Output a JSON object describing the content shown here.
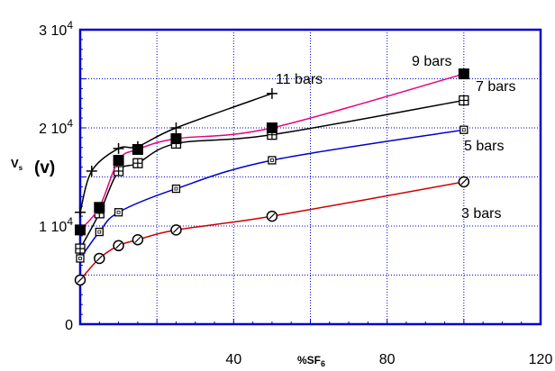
{
  "chart_data": {
    "type": "line",
    "title": "",
    "xlabel": "%SF",
    "xlabel_subscript": "6",
    "ylabel": "V",
    "ylabel_subscript": "s",
    "ylabel_unit": "(v)",
    "xlim": [
      0,
      120
    ],
    "ylim": [
      0,
      30000
    ],
    "grid": true,
    "legend": "none",
    "x_ticks": [
      {
        "value": 40,
        "label": "40"
      },
      {
        "value": 80,
        "label": "80"
      },
      {
        "value": 120,
        "label": "120"
      }
    ],
    "y_ticks": [
      {
        "value": 0,
        "label": "0",
        "exp": ""
      },
      {
        "value": 10000,
        "label": "1 10",
        "exp": "4"
      },
      {
        "value": 20000,
        "label": "2 10",
        "exp": "4"
      },
      {
        "value": 30000,
        "label": "3 10",
        "exp": "4"
      }
    ],
    "series": [
      {
        "name": "3 bars",
        "color": "#cc0000",
        "marker": "circle-x",
        "x": [
          0,
          5,
          10,
          15,
          25,
          50,
          100
        ],
        "y": [
          4500,
          6700,
          8000,
          8600,
          9600,
          11000,
          14500
        ]
      },
      {
        "name": "5 bars",
        "color": "#0000cc",
        "marker": "square-open",
        "x": [
          0,
          5,
          10,
          25,
          50,
          100
        ],
        "y": [
          6700,
          9400,
          11400,
          13800,
          16700,
          19800
        ]
      },
      {
        "name": "7 bars",
        "color": "#000000",
        "marker": "square-plus",
        "x": [
          0,
          5,
          10,
          15,
          25,
          50,
          100
        ],
        "y": [
          7700,
          11300,
          15600,
          16400,
          18400,
          19300,
          22800
        ]
      },
      {
        "name": "9 bars",
        "color": "#e6007e",
        "marker": "square-filled",
        "x": [
          0,
          5,
          10,
          15,
          25,
          50,
          100
        ],
        "y": [
          9600,
          11900,
          16700,
          17800,
          18900,
          20000,
          25500
        ]
      },
      {
        "name": "11 bars",
        "color": "#000000",
        "marker": "plus",
        "x": [
          0,
          3,
          10,
          15,
          25,
          50
        ],
        "y": [
          11400,
          15600,
          17900,
          18100,
          20000,
          23500
        ]
      }
    ]
  }
}
